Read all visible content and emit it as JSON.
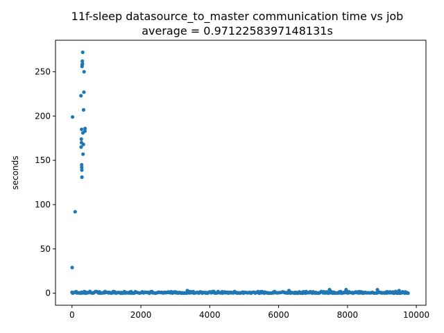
{
  "chart_data": {
    "type": "scatter",
    "title": "11f-sleep datasource_to_master communication time vs job",
    "subtitle": "average = 0.9712258397148131s",
    "xlabel": "",
    "ylabel": "seconds",
    "xlim": [
      -480,
      10280
    ],
    "ylim": [
      -13.6,
      285.6
    ],
    "xticks": [
      0,
      2000,
      4000,
      6000,
      8000,
      10000
    ],
    "xtick_labels": [
      "0",
      "2000",
      "4000",
      "6000",
      "8000",
      "10000"
    ],
    "yticks": [
      0,
      50,
      100,
      150,
      200,
      250
    ],
    "ytick_labels": [
      "0",
      "50",
      "100",
      "150",
      "200",
      "250"
    ],
    "grid": false,
    "legend": "none",
    "marker_color": "#1f77b4",
    "series": [
      {
        "x": [
          5,
          15,
          90,
          260,
          265,
          270,
          275,
          278,
          280,
          282,
          285,
          288,
          290,
          295,
          300,
          305,
          310,
          315,
          320,
          330,
          335,
          345,
          380
        ],
        "y": [
          29,
          199,
          92,
          223,
          165,
          174,
          170,
          185,
          145,
          142,
          139,
          131,
          256,
          258,
          262,
          259,
          272,
          181,
          157,
          168,
          207,
          227,
          186
        ],
        "note_y_extra": [
          250,
          183
        ]
      }
    ],
    "baseline_band": {
      "x_start": 0,
      "x_end": 9780,
      "y_typical": [
        0,
        2
      ],
      "spikes": [
        {
          "x": 7480,
          "y": 4
        },
        {
          "x": 7960,
          "y": 4
        },
        {
          "x": 8870,
          "y": 4
        },
        {
          "x": 9500,
          "y": 3
        },
        {
          "x": 3350,
          "y": 3
        },
        {
          "x": 6300,
          "y": 3
        }
      ]
    }
  }
}
